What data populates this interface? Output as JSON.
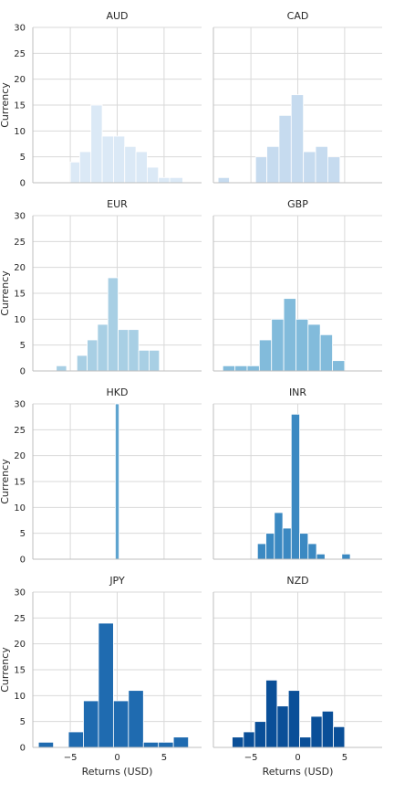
{
  "chart_data": {
    "type": "bar",
    "layout": "facet-grid",
    "columns": 2,
    "xlabel": "Returns (USD)",
    "ylabel": "Currency",
    "ylim": [
      0,
      30
    ],
    "xlim": [
      -9,
      9
    ],
    "x_ticks": [
      -5,
      0,
      5
    ],
    "x_tick_labels": [
      "−5",
      "0",
      "5"
    ],
    "y_ticks": [
      0,
      5,
      10,
      15,
      20,
      25,
      30
    ],
    "grid": true,
    "panels": [
      {
        "title": "AUD",
        "color": "#dbe9f6",
        "bars": [
          {
            "x0": -5.0,
            "x1": -4.0,
            "value": 4
          },
          {
            "x0": -4.0,
            "x1": -2.8,
            "value": 6
          },
          {
            "x0": -2.8,
            "x1": -1.6,
            "value": 15
          },
          {
            "x0": -1.6,
            "x1": -0.4,
            "value": 9
          },
          {
            "x0": -0.4,
            "x1": 0.8,
            "value": 9
          },
          {
            "x0": 0.8,
            "x1": 2.0,
            "value": 7
          },
          {
            "x0": 2.0,
            "x1": 3.2,
            "value": 6
          },
          {
            "x0": 3.2,
            "x1": 4.4,
            "value": 3
          },
          {
            "x0": 4.4,
            "x1": 5.6,
            "value": 1
          },
          {
            "x0": 5.6,
            "x1": 7.0,
            "value": 1
          }
        ]
      },
      {
        "title": "CAD",
        "color": "#c6dbef",
        "bars": [
          {
            "x0": -8.5,
            "x1": -7.3,
            "value": 1
          },
          {
            "x0": -4.5,
            "x1": -3.3,
            "value": 5
          },
          {
            "x0": -3.3,
            "x1": -2.0,
            "value": 7
          },
          {
            "x0": -2.0,
            "x1": -0.7,
            "value": 13
          },
          {
            "x0": -0.7,
            "x1": 0.6,
            "value": 17
          },
          {
            "x0": 0.6,
            "x1": 1.9,
            "value": 6
          },
          {
            "x0": 1.9,
            "x1": 3.2,
            "value": 7
          },
          {
            "x0": 3.2,
            "x1": 4.5,
            "value": 5
          }
        ]
      },
      {
        "title": "EUR",
        "color": "#a8cfe4",
        "bars": [
          {
            "x0": -6.5,
            "x1": -5.4,
            "value": 1
          },
          {
            "x0": -4.3,
            "x1": -3.2,
            "value": 3
          },
          {
            "x0": -3.2,
            "x1": -2.1,
            "value": 6
          },
          {
            "x0": -2.1,
            "x1": -1.0,
            "value": 9
          },
          {
            "x0": -1.0,
            "x1": 0.1,
            "value": 18
          },
          {
            "x0": 0.1,
            "x1": 1.2,
            "value": 8
          },
          {
            "x0": 1.2,
            "x1": 2.3,
            "value": 8
          },
          {
            "x0": 2.3,
            "x1": 3.4,
            "value": 4
          },
          {
            "x0": 3.4,
            "x1": 4.5,
            "value": 4
          }
        ]
      },
      {
        "title": "GBP",
        "color": "#82bbdb",
        "bars": [
          {
            "x0": -8.0,
            "x1": -6.7,
            "value": 1
          },
          {
            "x0": -6.7,
            "x1": -5.4,
            "value": 1
          },
          {
            "x0": -5.4,
            "x1": -4.1,
            "value": 1
          },
          {
            "x0": -4.1,
            "x1": -2.8,
            "value": 6
          },
          {
            "x0": -2.8,
            "x1": -1.5,
            "value": 10
          },
          {
            "x0": -1.5,
            "x1": -0.2,
            "value": 14
          },
          {
            "x0": -0.2,
            "x1": 1.1,
            "value": 10
          },
          {
            "x0": 1.1,
            "x1": 2.4,
            "value": 9
          },
          {
            "x0": 2.4,
            "x1": 3.7,
            "value": 7
          },
          {
            "x0": 3.7,
            "x1": 5.0,
            "value": 2
          }
        ]
      },
      {
        "title": "HKD",
        "color": "#5fa4cf",
        "bars": [
          {
            "x0": -0.2,
            "x1": 0.2,
            "value": 30
          }
        ]
      },
      {
        "title": "INR",
        "color": "#3b89c2",
        "bars": [
          {
            "x0": -4.3,
            "x1": -3.4,
            "value": 3
          },
          {
            "x0": -3.4,
            "x1": -2.5,
            "value": 5
          },
          {
            "x0": -2.5,
            "x1": -1.6,
            "value": 9
          },
          {
            "x0": -1.6,
            "x1": -0.7,
            "value": 6
          },
          {
            "x0": -0.7,
            "x1": 0.2,
            "value": 28
          },
          {
            "x0": 0.2,
            "x1": 1.1,
            "value": 5
          },
          {
            "x0": 1.1,
            "x1": 2.0,
            "value": 3
          },
          {
            "x0": 2.0,
            "x1": 2.9,
            "value": 1
          },
          {
            "x0": 4.7,
            "x1": 5.6,
            "value": 1
          }
        ]
      },
      {
        "title": "JPY",
        "color": "#1f6bb0",
        "bars": [
          {
            "x0": -8.4,
            "x1": -6.8,
            "value": 1
          },
          {
            "x0": -5.2,
            "x1": -3.6,
            "value": 3
          },
          {
            "x0": -3.6,
            "x1": -2.0,
            "value": 9
          },
          {
            "x0": -2.0,
            "x1": -0.4,
            "value": 24
          },
          {
            "x0": -0.4,
            "x1": 1.2,
            "value": 9
          },
          {
            "x0": 1.2,
            "x1": 2.8,
            "value": 11
          },
          {
            "x0": 2.8,
            "x1": 4.4,
            "value": 1
          },
          {
            "x0": 4.4,
            "x1": 6.0,
            "value": 1
          },
          {
            "x0": 6.0,
            "x1": 7.6,
            "value": 2
          }
        ]
      },
      {
        "title": "NZD",
        "color": "#0a4f98",
        "bars": [
          {
            "x0": -7.0,
            "x1": -5.8,
            "value": 2
          },
          {
            "x0": -5.8,
            "x1": -4.6,
            "value": 3
          },
          {
            "x0": -4.6,
            "x1": -3.4,
            "value": 5
          },
          {
            "x0": -3.4,
            "x1": -2.2,
            "value": 13
          },
          {
            "x0": -2.2,
            "x1": -1.0,
            "value": 8
          },
          {
            "x0": -1.0,
            "x1": 0.2,
            "value": 11
          },
          {
            "x0": 0.2,
            "x1": 1.4,
            "value": 2
          },
          {
            "x0": 1.4,
            "x1": 2.6,
            "value": 6
          },
          {
            "x0": 2.6,
            "x1": 3.8,
            "value": 7
          },
          {
            "x0": 3.8,
            "x1": 5.0,
            "value": 4
          }
        ]
      }
    ]
  }
}
